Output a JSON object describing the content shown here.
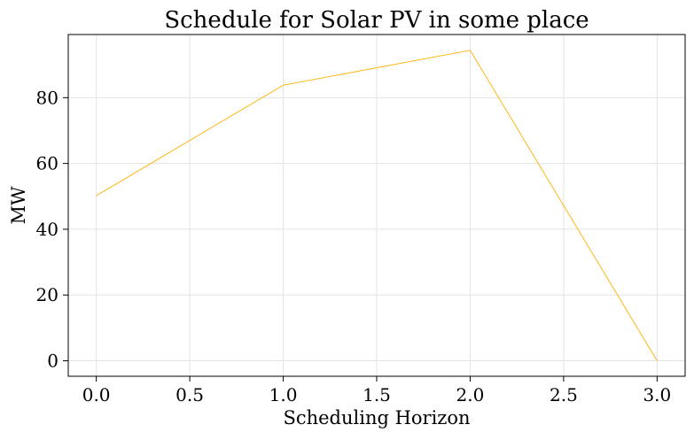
{
  "chart_data": {
    "type": "line",
    "title": "Schedule for Solar PV in some place",
    "xlabel": "Scheduling Horizon",
    "ylabel": "MW",
    "x": [
      0,
      1,
      2,
      3
    ],
    "series": [
      {
        "values": [
          50.2,
          83.8,
          94.4,
          0.0
        ],
        "color": "#FFB000"
      }
    ],
    "xlim": [
      -0.15,
      3.15
    ],
    "ylim": [
      -4.7,
      99.2
    ],
    "xticks": [
      0,
      0.5,
      1,
      1.5,
      2,
      2.5,
      3
    ],
    "xtick_labels": [
      "0.0",
      "0.5",
      "1.0",
      "1.5",
      "2.0",
      "2.5",
      "3.0"
    ],
    "yticks": [
      0,
      20,
      40,
      60,
      80
    ],
    "ytick_labels": [
      "0",
      "20",
      "40",
      "60",
      "80"
    ],
    "grid": true,
    "legend": "none"
  }
}
